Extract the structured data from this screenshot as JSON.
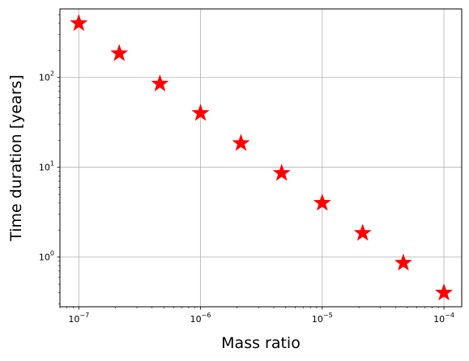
{
  "chart_data": {
    "type": "scatter",
    "title": "",
    "xlabel": "Mass ratio",
    "ylabel": "Time duration [years]",
    "x_scale": "log",
    "y_scale": "log",
    "xlim": [
      7e-08,
      0.00014
    ],
    "ylim": [
      0.28,
      580
    ],
    "grid": true,
    "marker": "star",
    "marker_color": "#ff0000",
    "x_ticks": [
      {
        "base": "10",
        "exp": "−7"
      },
      {
        "base": "10",
        "exp": "−6"
      },
      {
        "base": "10",
        "exp": "−5"
      },
      {
        "base": "10",
        "exp": "−4"
      }
    ],
    "y_ticks": [
      {
        "base": "10",
        "exp": "0"
      },
      {
        "base": "10",
        "exp": "1"
      },
      {
        "base": "10",
        "exp": "2"
      }
    ],
    "x": [
      1e-07,
      2.15e-07,
      4.64e-07,
      1e-06,
      2.15e-06,
      4.64e-06,
      1e-05,
      2.15e-05,
      4.64e-05,
      0.0001
    ],
    "y": [
      400,
      185,
      85,
      40,
      18.5,
      8.6,
      4.0,
      1.85,
      0.86,
      0.4
    ]
  }
}
